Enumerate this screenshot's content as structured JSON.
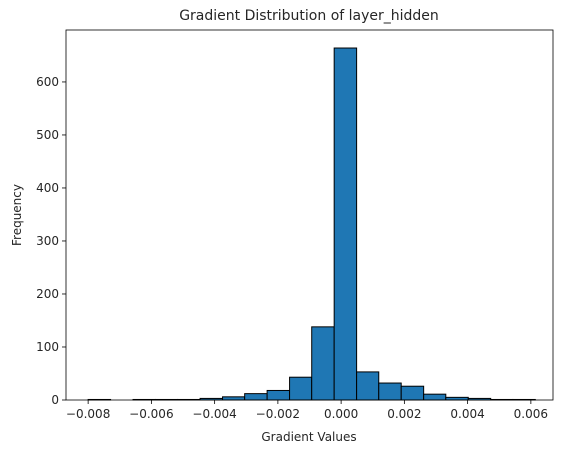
{
  "chart_data": {
    "type": "bar",
    "title": "Gradient Distribution of layer_hidden",
    "xlabel": "Gradient Values",
    "ylabel": "Frequency",
    "bar_color": "#1f77b4",
    "edge_color": "#000000",
    "xlim": [
      -0.0087,
      0.0067
    ],
    "ylim": [
      0,
      698
    ],
    "x_ticks": [
      -0.008,
      -0.006,
      -0.004,
      -0.002,
      0.0,
      0.002,
      0.004,
      0.006
    ],
    "x_tick_labels": [
      "−0.008",
      "−0.006",
      "−0.004",
      "−0.002",
      "0.000",
      "0.002",
      "0.004",
      "0.006"
    ],
    "y_ticks": [
      0,
      100,
      200,
      300,
      400,
      500,
      600
    ],
    "y_tick_labels": [
      "0",
      "100",
      "200",
      "300",
      "400",
      "500",
      "600"
    ],
    "bins": [
      {
        "x0": -0.008,
        "x1": -0.00729,
        "count": 1
      },
      {
        "x0": -0.00729,
        "x1": -0.00658,
        "count": 0
      },
      {
        "x0": -0.00658,
        "x1": -0.00587,
        "count": 1
      },
      {
        "x0": -0.00587,
        "x1": -0.00517,
        "count": 1
      },
      {
        "x0": -0.00517,
        "x1": -0.00446,
        "count": 1
      },
      {
        "x0": -0.00446,
        "x1": -0.00375,
        "count": 3
      },
      {
        "x0": -0.00375,
        "x1": -0.00305,
        "count": 6
      },
      {
        "x0": -0.00305,
        "x1": -0.00234,
        "count": 12
      },
      {
        "x0": -0.00234,
        "x1": -0.00163,
        "count": 18
      },
      {
        "x0": -0.00163,
        "x1": -0.00093,
        "count": 43
      },
      {
        "x0": -0.00093,
        "x1": -0.00022,
        "count": 138
      },
      {
        "x0": -0.00022,
        "x1": 0.00049,
        "count": 664
      },
      {
        "x0": 0.00049,
        "x1": 0.00119,
        "count": 53
      },
      {
        "x0": 0.00119,
        "x1": 0.0019,
        "count": 32
      },
      {
        "x0": 0.0019,
        "x1": 0.00261,
        "count": 26
      },
      {
        "x0": 0.00261,
        "x1": 0.00331,
        "count": 11
      },
      {
        "x0": 0.00331,
        "x1": 0.00402,
        "count": 5
      },
      {
        "x0": 0.00402,
        "x1": 0.00473,
        "count": 3
      },
      {
        "x0": 0.00473,
        "x1": 0.00543,
        "count": 1
      },
      {
        "x0": 0.00543,
        "x1": 0.00614,
        "count": 1
      }
    ]
  }
}
